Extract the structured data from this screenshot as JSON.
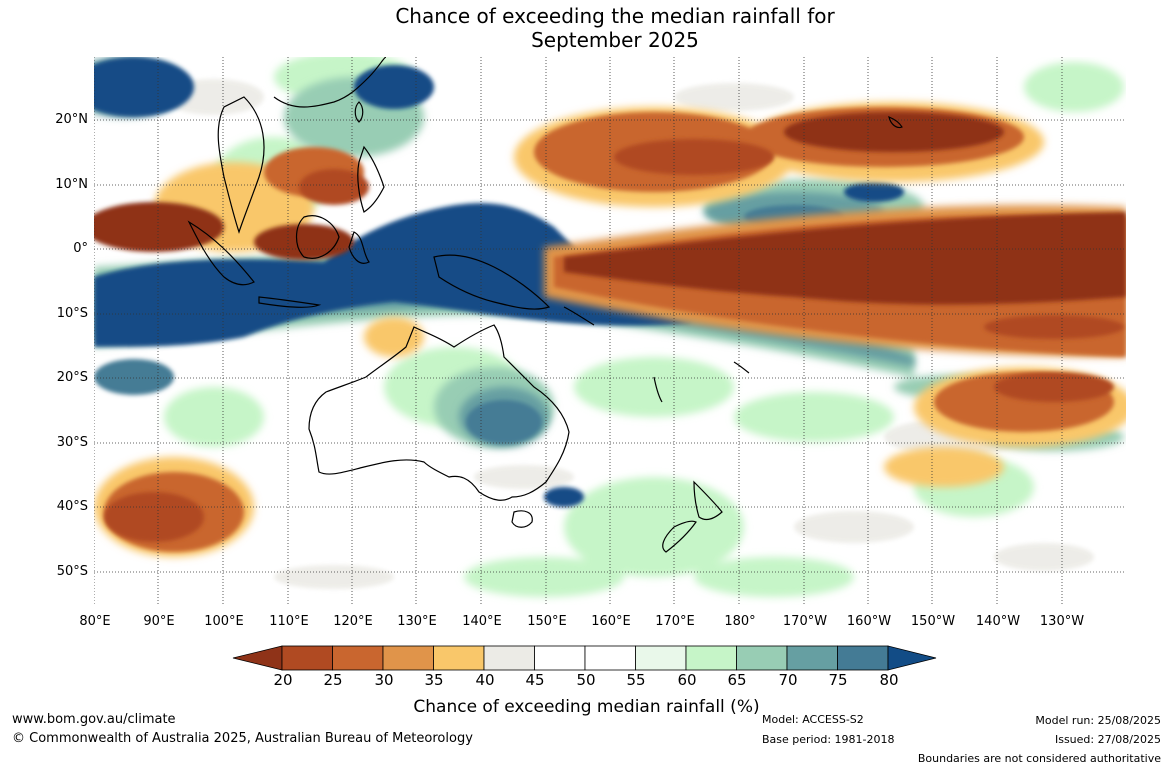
{
  "title": {
    "line1": "Chance of exceeding the median rainfall for",
    "line2": "September 2025"
  },
  "map": {
    "latitude_labels": [
      "20°N",
      "10°N",
      "0°",
      "10°S",
      "20°S",
      "30°S",
      "40°S",
      "50°S"
    ],
    "longitude_labels": [
      "80°E",
      "90°E",
      "100°E",
      "110°E",
      "120°E",
      "130°E",
      "140°E",
      "150°E",
      "160°E",
      "170°E",
      "180°",
      "170°W",
      "160°W",
      "150°W",
      "140°W",
      "130°W"
    ],
    "lon_range": [
      80,
      240
    ],
    "lat_range": [
      -55,
      30
    ]
  },
  "colorbar": {
    "ticks": [
      "20",
      "25",
      "30",
      "35",
      "40",
      "45",
      "50",
      "55",
      "60",
      "65",
      "70",
      "75",
      "80"
    ],
    "colors": [
      "#8f3318",
      "#b04a22",
      "#c9662f",
      "#e0944a",
      "#f9c76a",
      "#ecebe6",
      "#ffffff",
      "#ffffff",
      "#e9f8ea",
      "#c6f5c8",
      "#98cdb4",
      "#669fa2",
      "#447b95",
      "#124c86"
    ],
    "label": "Chance of exceeding median rainfall (%)"
  },
  "footer": {
    "website": "www.bom.gov.au/climate",
    "copyright": "© Commonwealth of Australia 2025, Australian Bureau of Meteorology",
    "model": "Model: ACCESS-S2",
    "base_period": "Base period: 1981-2018",
    "model_run": "Model run: 25/08/2025",
    "issued": "Issued: 27/08/2025",
    "disclaimer": "Boundaries are not considered authoritative"
  }
}
